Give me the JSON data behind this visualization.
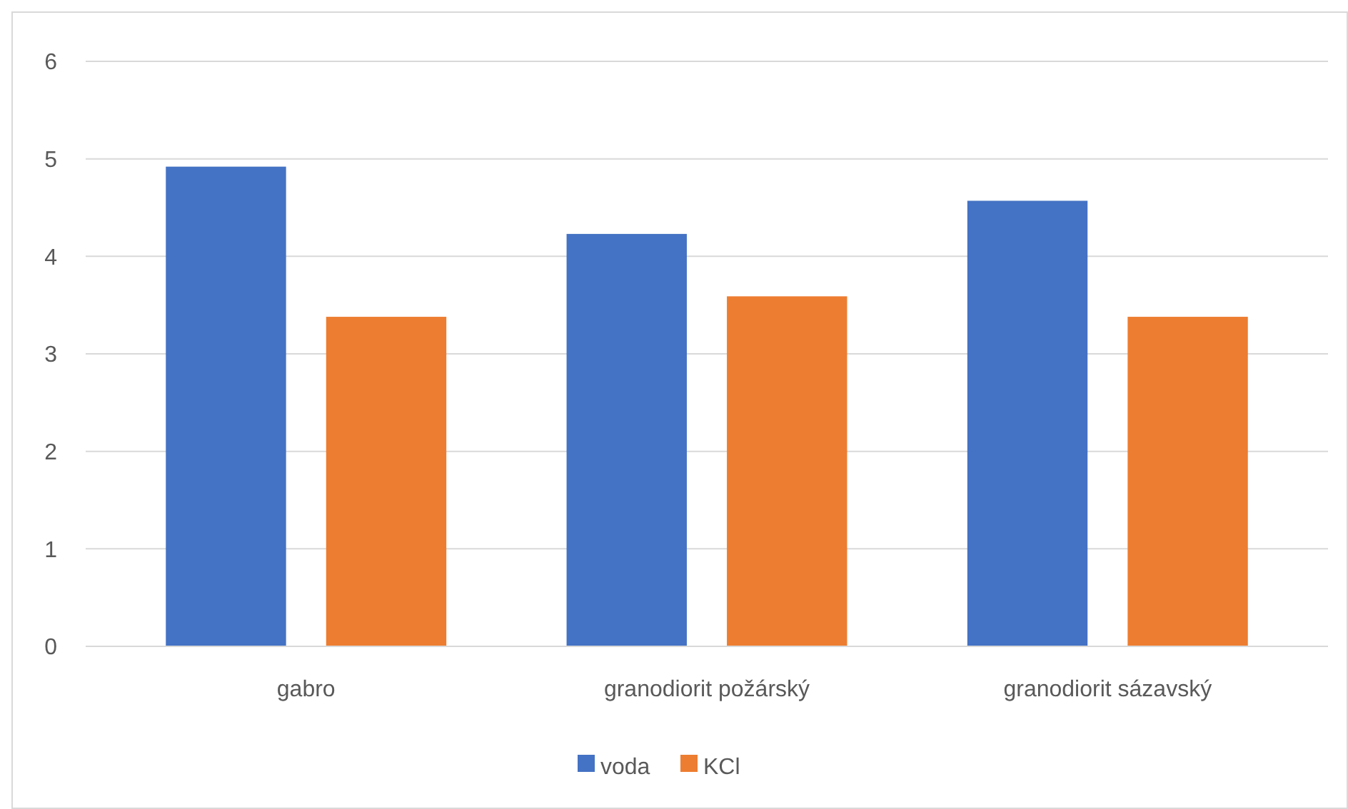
{
  "chart_data": {
    "type": "bar",
    "categories": [
      "gabro",
      "granodiorit požárský",
      "granodiorit sázavský"
    ],
    "series": [
      {
        "name": "voda",
        "color": "#4472c4",
        "values": [
          4.92,
          4.23,
          4.57
        ]
      },
      {
        "name": "KCl",
        "color": "#ed7d31",
        "values": [
          3.38,
          3.59,
          3.38
        ]
      }
    ],
    "ylim": [
      0,
      6
    ],
    "yticks": [
      0,
      1,
      2,
      3,
      4,
      5,
      6
    ],
    "grid": "y",
    "legend": "bottom"
  }
}
